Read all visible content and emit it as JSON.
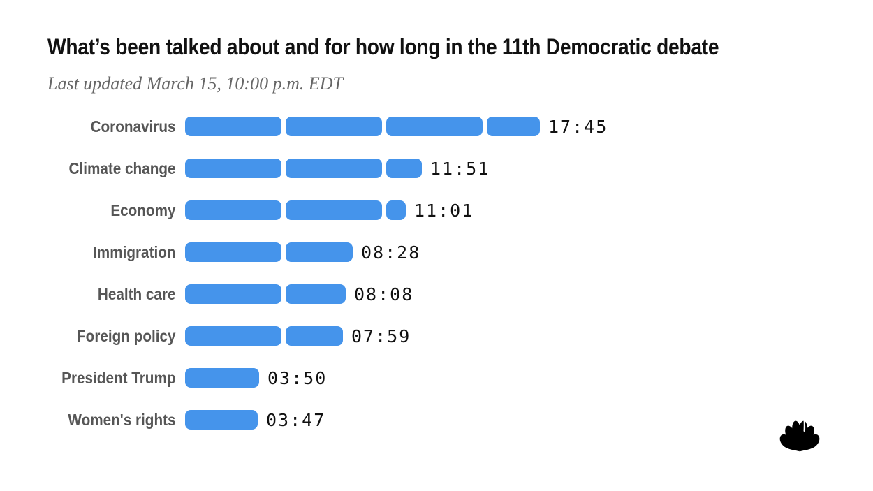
{
  "header": {
    "title": "What’s been talked about and for how long in the 11th Democratic debate",
    "subtitle": "Last updated March 15, 10:00 p.m. EDT"
  },
  "colors": {
    "bar": "#4594EB",
    "category_label": "#565656",
    "title_text": "#111111",
    "subtitle_text": "#666666",
    "logo": "#000000"
  },
  "chart_data": {
    "type": "bar",
    "orientation": "horizontal",
    "title": "What’s been talked about and for how long in the 11th Democratic debate",
    "subtitle": "Last updated March 15, 10:00 p.m. EDT",
    "unit": "minutes:seconds of speaking time",
    "segment_unit_seconds": 300,
    "categories": [
      "Coronavirus",
      "Climate change",
      "Economy",
      "Immigration",
      "Health care",
      "Foreign policy",
      "President Trump",
      "Women's rights"
    ],
    "values": [
      "17:45",
      "11:51",
      "11:01",
      "08:28",
      "08:08",
      "07:59",
      "03:50",
      "03:47"
    ],
    "values_seconds": [
      1065,
      711,
      661,
      508,
      488,
      479,
      230,
      227
    ],
    "xlim_seconds": [
      0,
      1200
    ],
    "grid": false,
    "legend": false,
    "bar_style": "segmented rounded pills, one segment per 5 minutes",
    "value_label_position": "right of bar"
  },
  "branding": {
    "logo_name": "nbc-peacock"
  }
}
